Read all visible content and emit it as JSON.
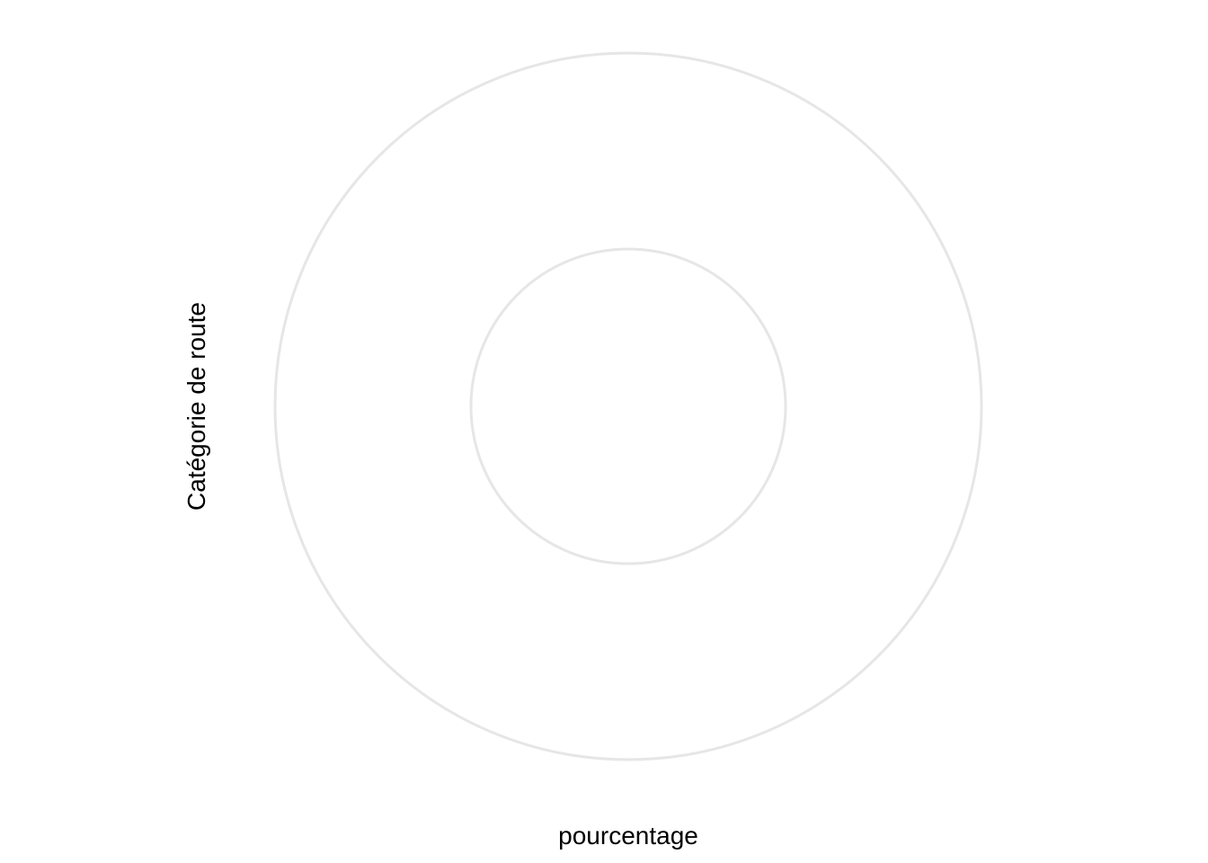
{
  "chart_data": {
    "type": "pie",
    "title": "",
    "xlabel": "pourcentage",
    "ylabel": "Catégorie de route",
    "categories": [],
    "values": [],
    "grid": true,
    "grid_rings": 2,
    "grid_color": "#e6e6e6",
    "background_color": "#ffffff",
    "text_color": "#000000"
  }
}
